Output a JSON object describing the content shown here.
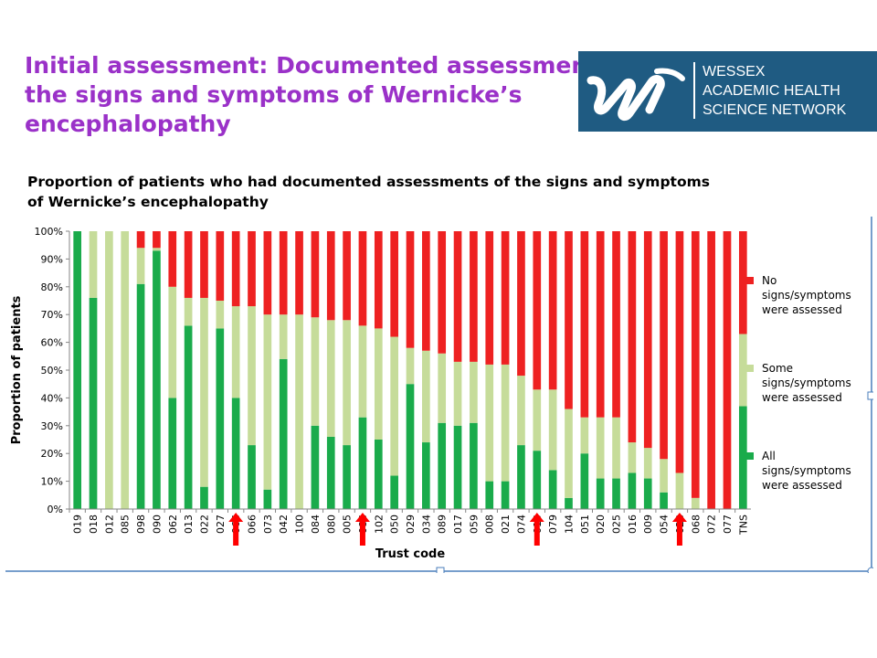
{
  "header": {
    "title_line1": "Initial assessment: Documented assessments for",
    "title_line2": "the signs and symptoms of Wernicke’s",
    "title_line3": "encephalopathy"
  },
  "logo": {
    "line1": "WESSEX",
    "line2": "ACADEMIC HEALTH",
    "line3": "SCIENCE NETWORK",
    "background": "#1f5b82"
  },
  "subtitle": {
    "line1": "Proportion of patients who had documented assessments of the signs and symptoms",
    "line2": "of Wernicke’s encephalopathy"
  },
  "chart_data": {
    "type": "bar",
    "stacked": true,
    "xlabel": "Trust code",
    "ylabel": "Proportion of patients",
    "ylim": [
      0,
      100
    ],
    "ytick_labels": [
      "0%",
      "10%",
      "20%",
      "30%",
      "40%",
      "50%",
      "60%",
      "70%",
      "80%",
      "90%",
      "100%"
    ],
    "grid": false,
    "legend_position": "right",
    "categories": [
      "019",
      "018",
      "012",
      "085",
      "098",
      "090",
      "062",
      "013",
      "022",
      "027",
      "066",
      "066",
      "073",
      "042",
      "100",
      "084",
      "080",
      "005",
      "086",
      "102",
      "050",
      "029",
      "034",
      "089",
      "017",
      "059",
      "008",
      "021",
      "074",
      "015",
      "079",
      "104",
      "051",
      "020",
      "025",
      "016",
      "009",
      "054",
      "028",
      "068",
      "072",
      "077",
      "TNS"
    ],
    "highlighted_categories_arrows": [
      10,
      18,
      29,
      38
    ],
    "series": [
      {
        "name": "All signs/symptoms were assessed",
        "color": "#1aab4b",
        "values": [
          100,
          76,
          0,
          0,
          81,
          93,
          40,
          66,
          8,
          65,
          40,
          23,
          7,
          54,
          0,
          30,
          26,
          23,
          33,
          25,
          12,
          45,
          24,
          31,
          30,
          31,
          10,
          10,
          23,
          21,
          14,
          4,
          20,
          11,
          11,
          13,
          11,
          6,
          0,
          0,
          0,
          0,
          37
        ]
      },
      {
        "name": "Some signs/symptoms were assessed",
        "color": "#c6dc9a",
        "values": [
          0,
          24,
          100,
          100,
          13,
          1,
          40,
          10,
          68,
          10,
          33,
          50,
          63,
          16,
          70,
          39,
          42,
          45,
          33,
          40,
          50,
          13,
          33,
          25,
          23,
          22,
          42,
          42,
          25,
          22,
          29,
          32,
          13,
          22,
          22,
          11,
          11,
          12,
          13,
          4,
          0,
          0,
          26
        ]
      },
      {
        "name": "No signs/symptoms were assessed",
        "color": "#ee2121",
        "values": [
          0,
          0,
          0,
          0,
          6,
          6,
          20,
          24,
          24,
          25,
          27,
          27,
          30,
          30,
          30,
          31,
          32,
          32,
          34,
          35,
          38,
          42,
          43,
          44,
          47,
          47,
          48,
          48,
          52,
          57,
          57,
          64,
          67,
          67,
          67,
          76,
          78,
          82,
          87,
          96,
          100,
          100,
          37
        ]
      }
    ],
    "legend_entries": [
      {
        "line1": "No",
        "line2": "signs/symptoms",
        "line3": "were assessed",
        "color": "#ee2121"
      },
      {
        "line1": "Some",
        "line2": "signs/symptoms",
        "line3": "were assessed",
        "color": "#c6dc9a"
      },
      {
        "line1": "All",
        "line2": "signs/symptoms",
        "line3": "were assessed",
        "color": "#1aab4b"
      }
    ]
  }
}
